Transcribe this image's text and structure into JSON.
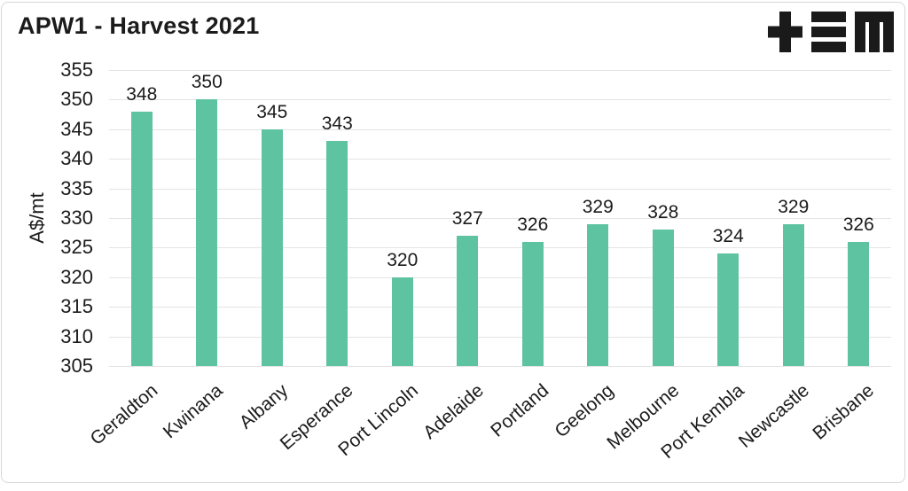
{
  "header": {
    "title": "APW1 - Harvest 2021",
    "logo": "tem-logo"
  },
  "chart_data": {
    "type": "bar",
    "title": "APW1 - Harvest 2021",
    "categories": [
      "Geraldton",
      "Kwinana",
      "Albany",
      "Esperance",
      "Port Lincoln",
      "Adelaide",
      "Portland",
      "Geelong",
      "Melbourne",
      "Port Kembla",
      "Newcastle",
      "Brisbane"
    ],
    "values": [
      348,
      350,
      345,
      343,
      320,
      327,
      326,
      329,
      328,
      324,
      329,
      326
    ],
    "xlabel": "",
    "ylabel": "A$/mt",
    "ylim": [
      305,
      355
    ],
    "ytick_step": 5,
    "yticks": [
      355,
      350,
      345,
      340,
      335,
      330,
      325,
      320,
      315,
      310,
      305
    ],
    "grid": true,
    "legend": false,
    "data_labels": true,
    "bar_color": "#5ec3a0"
  }
}
